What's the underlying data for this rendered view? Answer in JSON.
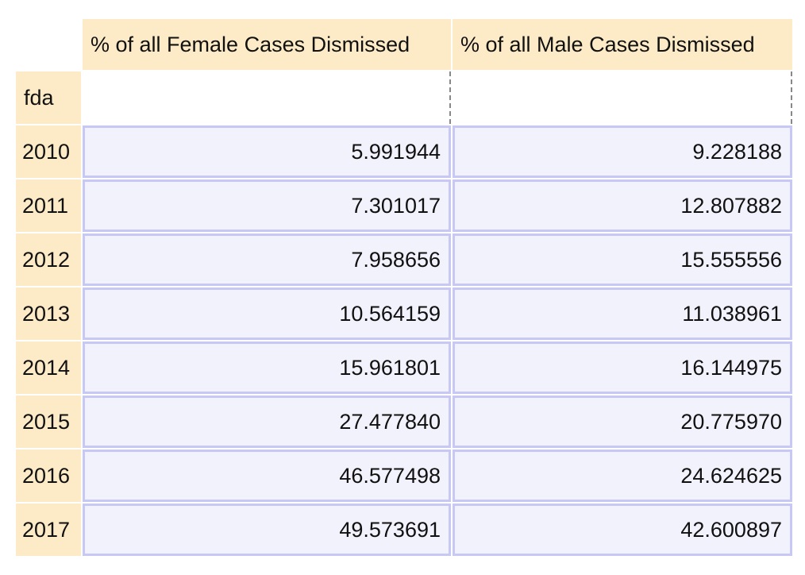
{
  "table": {
    "columns": [
      "% of all Female Cases Dismissed",
      "% of all Male Cases Dismissed"
    ],
    "index_name": "fda",
    "rows": [
      {
        "year": "2010",
        "female": "5.991944",
        "male": "9.228188"
      },
      {
        "year": "2011",
        "female": "7.301017",
        "male": "12.807882"
      },
      {
        "year": "2012",
        "female": "7.958656",
        "male": "15.555556"
      },
      {
        "year": "2013",
        "female": "10.564159",
        "male": "11.038961"
      },
      {
        "year": "2014",
        "female": "15.961801",
        "male": "16.144975"
      },
      {
        "year": "2015",
        "female": "27.477840",
        "male": "20.775970"
      },
      {
        "year": "2016",
        "female": "46.577498",
        "male": "24.624625"
      },
      {
        "year": "2017",
        "female": "49.573691",
        "male": "42.600897"
      }
    ]
  },
  "colors": {
    "header_bg": "#fdebc8",
    "cell_bg": "#f2f2fd",
    "cell_border": "#c8c8f4"
  }
}
